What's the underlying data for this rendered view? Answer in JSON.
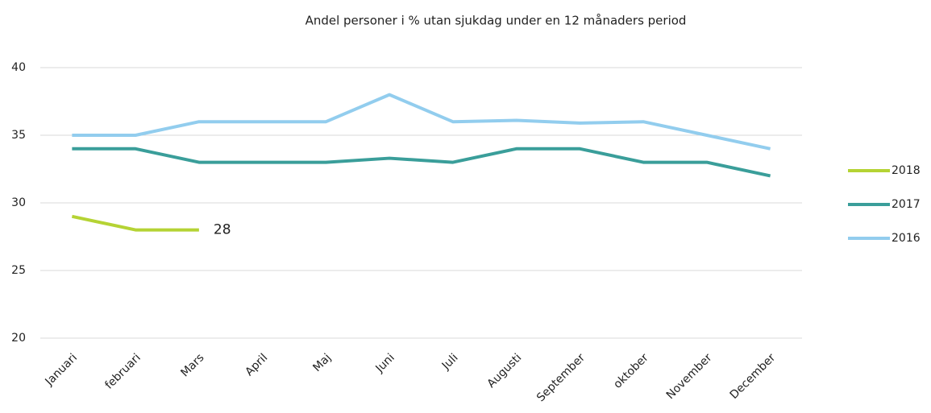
{
  "chart_data": {
    "type": "line",
    "title": "Andel personer i % utan sjukdag under en 12 månaders period",
    "categories": [
      "Januari",
      "februari",
      "Mars",
      "April",
      "Maj",
      "Juni",
      "Juli",
      "Augusti",
      "September",
      "oktober",
      "November",
      "December"
    ],
    "series": [
      {
        "name": "2018",
        "color": "#b5d334",
        "values": [
          29,
          28,
          28,
          null,
          null,
          null,
          null,
          null,
          null,
          null,
          null,
          null
        ],
        "value_labels": [
          null,
          null,
          "28",
          null,
          null,
          null,
          null,
          null,
          null,
          null,
          null,
          null
        ]
      },
      {
        "name": "2017",
        "color": "#3a9e9a",
        "values": [
          34,
          34,
          33,
          33,
          33,
          33.3,
          33,
          34,
          34,
          33,
          33,
          32
        ]
      },
      {
        "name": "2016",
        "color": "#92cdee",
        "values": [
          35,
          35,
          36,
          36,
          36,
          38,
          36,
          36.1,
          35.9,
          36,
          35,
          34
        ]
      }
    ],
    "ylim": [
      20,
      40
    ],
    "yticks": [
      20,
      25,
      30,
      35,
      40
    ],
    "grid": true,
    "legend": "right"
  }
}
